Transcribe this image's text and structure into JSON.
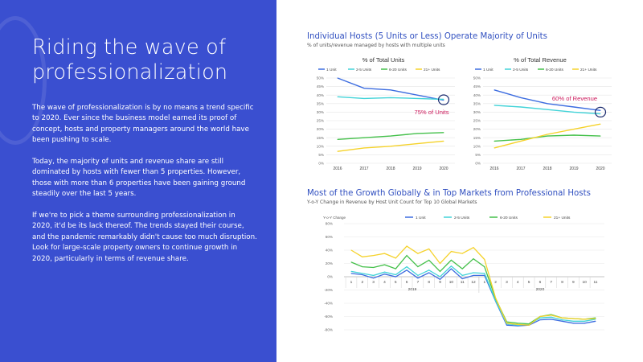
{
  "slide": {
    "title": "Riding the wave of professionalization",
    "paragraphs": [
      "The wave of professionalization is by no means a trend specific to 2020. Ever since the business model earned its proof of concept, hosts and property managers around the world have been pushing to scale.",
      "Today, the majority of units and revenue share are still dominated by hosts with fewer than 5 properties. However, those with more than 6 properties have been gaining ground steadily over the last 5 years.",
      "If we're to pick a theme surrounding professionalization in 2020, it'd be its lack thereof. The trends stayed their course, and the pandemic remarkably didn't cause too much disruption. Look for large-scale property owners to continue growth in 2020, particularly in terms of revenue share."
    ]
  },
  "colors": {
    "panel_bg": "#3a4fd0",
    "series_1_unit": "#3d6de0",
    "series_2_5_units": "#42d3d8",
    "series_6_20_units": "#44c04a",
    "series_21_plus_units": "#f5d22a",
    "highlight": "#cc1a5c"
  },
  "chart_section_1": {
    "title": "Individual Hosts (5 Units or Less) Operate Majority of Units",
    "subtitle": "% of units/revenue managed by hosts with multiple units"
  },
  "chart_section_2": {
    "title": "Most of the Growth Globally & in Top Markets from Professional Hosts",
    "subtitle": "Y-o-Y Change in Revenue by Host Unit Count for Top 10 Global Markets"
  },
  "chart_data": [
    {
      "type": "line",
      "title": "% of Total Units",
      "x": [
        "2016",
        "2017",
        "2018",
        "2019",
        "2020"
      ],
      "yticks": [
        "0%",
        "5%",
        "10%",
        "15%",
        "20%",
        "25%",
        "30%",
        "35%",
        "40%",
        "45%",
        "50%"
      ],
      "ylim": [
        0,
        50
      ],
      "legend_position": "top",
      "series": [
        {
          "name": "1 Unit",
          "values": [
            50,
            44,
            43,
            40,
            37
          ]
        },
        {
          "name": "2-5 Units",
          "values": [
            39,
            38,
            38.5,
            38,
            37.5
          ]
        },
        {
          "name": "6-20 Units",
          "values": [
            14,
            15,
            16,
            17.5,
            18
          ]
        },
        {
          "name": "21+ Units",
          "values": [
            7,
            9,
            10,
            11.5,
            13
          ]
        }
      ],
      "annotation": "75% of Units"
    },
    {
      "type": "line",
      "title": "% of Total Revenue",
      "x": [
        "2016",
        "2017",
        "2018",
        "2019",
        "2020"
      ],
      "yticks": [
        "0%",
        "5%",
        "10%",
        "15%",
        "20%",
        "25%",
        "30%",
        "35%",
        "40%",
        "45%",
        "50%"
      ],
      "ylim": [
        0,
        50
      ],
      "legend_position": "top",
      "series": [
        {
          "name": "1 Unit",
          "values": [
            43,
            38.5,
            35,
            33,
            31
          ]
        },
        {
          "name": "2-5 Units",
          "values": [
            34,
            33,
            31.5,
            30,
            29
          ]
        },
        {
          "name": "6-20 Units",
          "values": [
            13,
            14,
            16,
            16.5,
            16
          ]
        },
        {
          "name": "21+ Units",
          "values": [
            9,
            13,
            17,
            20,
            23
          ]
        }
      ],
      "annotation": "60% of Revenue"
    },
    {
      "type": "line",
      "ylabel": "Y-o-Y Change",
      "x": [
        "1",
        "2",
        "3",
        "4",
        "5",
        "6",
        "7",
        "8",
        "9",
        "10",
        "11",
        "12",
        "1",
        "2",
        "3",
        "4",
        "5",
        "6",
        "7",
        "8",
        "9",
        "10",
        "11"
      ],
      "year_labels": [
        "2019",
        "2020"
      ],
      "yticks": [
        "-80%",
        "-60%",
        "-40%",
        "-20%",
        "0%",
        "20%",
        "40%",
        "60%",
        "80%"
      ],
      "ylim": [
        -80,
        80
      ],
      "legend_position": "top",
      "series": [
        {
          "name": "1 Unit",
          "values": [
            5,
            3,
            -2,
            4,
            0,
            10,
            -2,
            6,
            -4,
            12,
            -3,
            2,
            2,
            -37,
            -73,
            -74,
            -73,
            -65,
            -64,
            -67,
            -70,
            -70,
            -67
          ]
        },
        {
          "name": "2-5 Units",
          "values": [
            8,
            5,
            2,
            7,
            3,
            15,
            2,
            10,
            0,
            16,
            2,
            6,
            5,
            -36,
            -71,
            -73,
            -72,
            -62,
            -61,
            -65,
            -67,
            -67,
            -64
          ]
        },
        {
          "name": "6-20 Units",
          "values": [
            22,
            15,
            14,
            18,
            12,
            32,
            15,
            25,
            8,
            25,
            12,
            27,
            15,
            -33,
            -68,
            -70,
            -71,
            -60,
            -57,
            -62,
            -63,
            -64,
            -62
          ]
        },
        {
          "name": "21+ Units",
          "values": [
            40,
            30,
            32,
            35,
            28,
            46,
            35,
            42,
            20,
            38,
            35,
            44,
            26,
            -32,
            -70,
            -72,
            -73,
            -60,
            -58,
            -62,
            -63,
            -64,
            -63
          ]
        }
      ]
    }
  ]
}
